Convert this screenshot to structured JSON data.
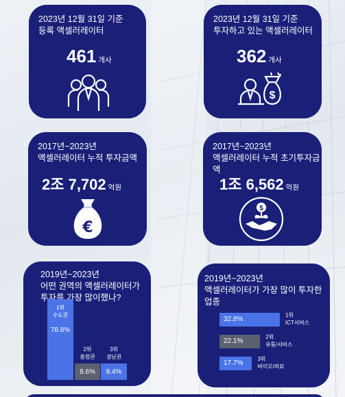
{
  "cards": {
    "accelerators": {
      "header_line1": "2023년 12월 31일 기준",
      "header_line2": "등록 액셀러레이터",
      "value": "461",
      "unit": "개사",
      "icon": "people-group-icon"
    },
    "investing": {
      "header_line1": "2023년 12월 31일 기준",
      "header_line2": "투자하고 있는 액셀러레이터",
      "value": "362",
      "unit": "개사",
      "icon": "investor-money-bag-icon"
    },
    "cumulative": {
      "header_line1": "2017년~2023년",
      "header_line2": "액셀러레이터 누적 투자금액",
      "value": "2조 7,702",
      "unit": "억원",
      "icon": "euro-money-bag-icon"
    },
    "initial": {
      "header_line1": "2017년~2023년",
      "header_line2": "액셀러레이터 누적 초기투자금액",
      "value": "1조 6,562",
      "unit": "억원",
      "icon": "handshake-coin-plant-icon"
    },
    "regions": {
      "header_line1": "2019년~2023년",
      "header_line2": "어떤 권역의 액셀러레이터가",
      "header_line3": "투자를 가장 많이했나?"
    },
    "industries": {
      "header_line1": "2019년~2023년",
      "header_line2": "액셀러레이터가 가장 많이 투자한 업종"
    }
  },
  "chart_data": [
    {
      "type": "bar",
      "categories": [
        "수도권",
        "충청권",
        "경남권"
      ],
      "ranks": [
        "1위",
        "2위",
        "3위"
      ],
      "values": [
        78.8,
        8.6,
        8.4
      ],
      "value_labels": [
        "78.8%",
        "8.6%",
        "8.4%"
      ],
      "colors": [
        "#4a73e8",
        "#5b6170",
        "#4a73e8"
      ]
    },
    {
      "type": "bar",
      "orientation": "horizontal",
      "categories": [
        "ICT서비스",
        "유통/서비스",
        "바이오/의료"
      ],
      "ranks": [
        "1위",
        "2위",
        "3위"
      ],
      "values": [
        32.8,
        22.1,
        17.7
      ],
      "value_labels": [
        "32.8%",
        "22.1%",
        "17.7%"
      ],
      "colors": [
        "#4a73e8",
        "#5b6170",
        "#4a73e8"
      ]
    }
  ]
}
